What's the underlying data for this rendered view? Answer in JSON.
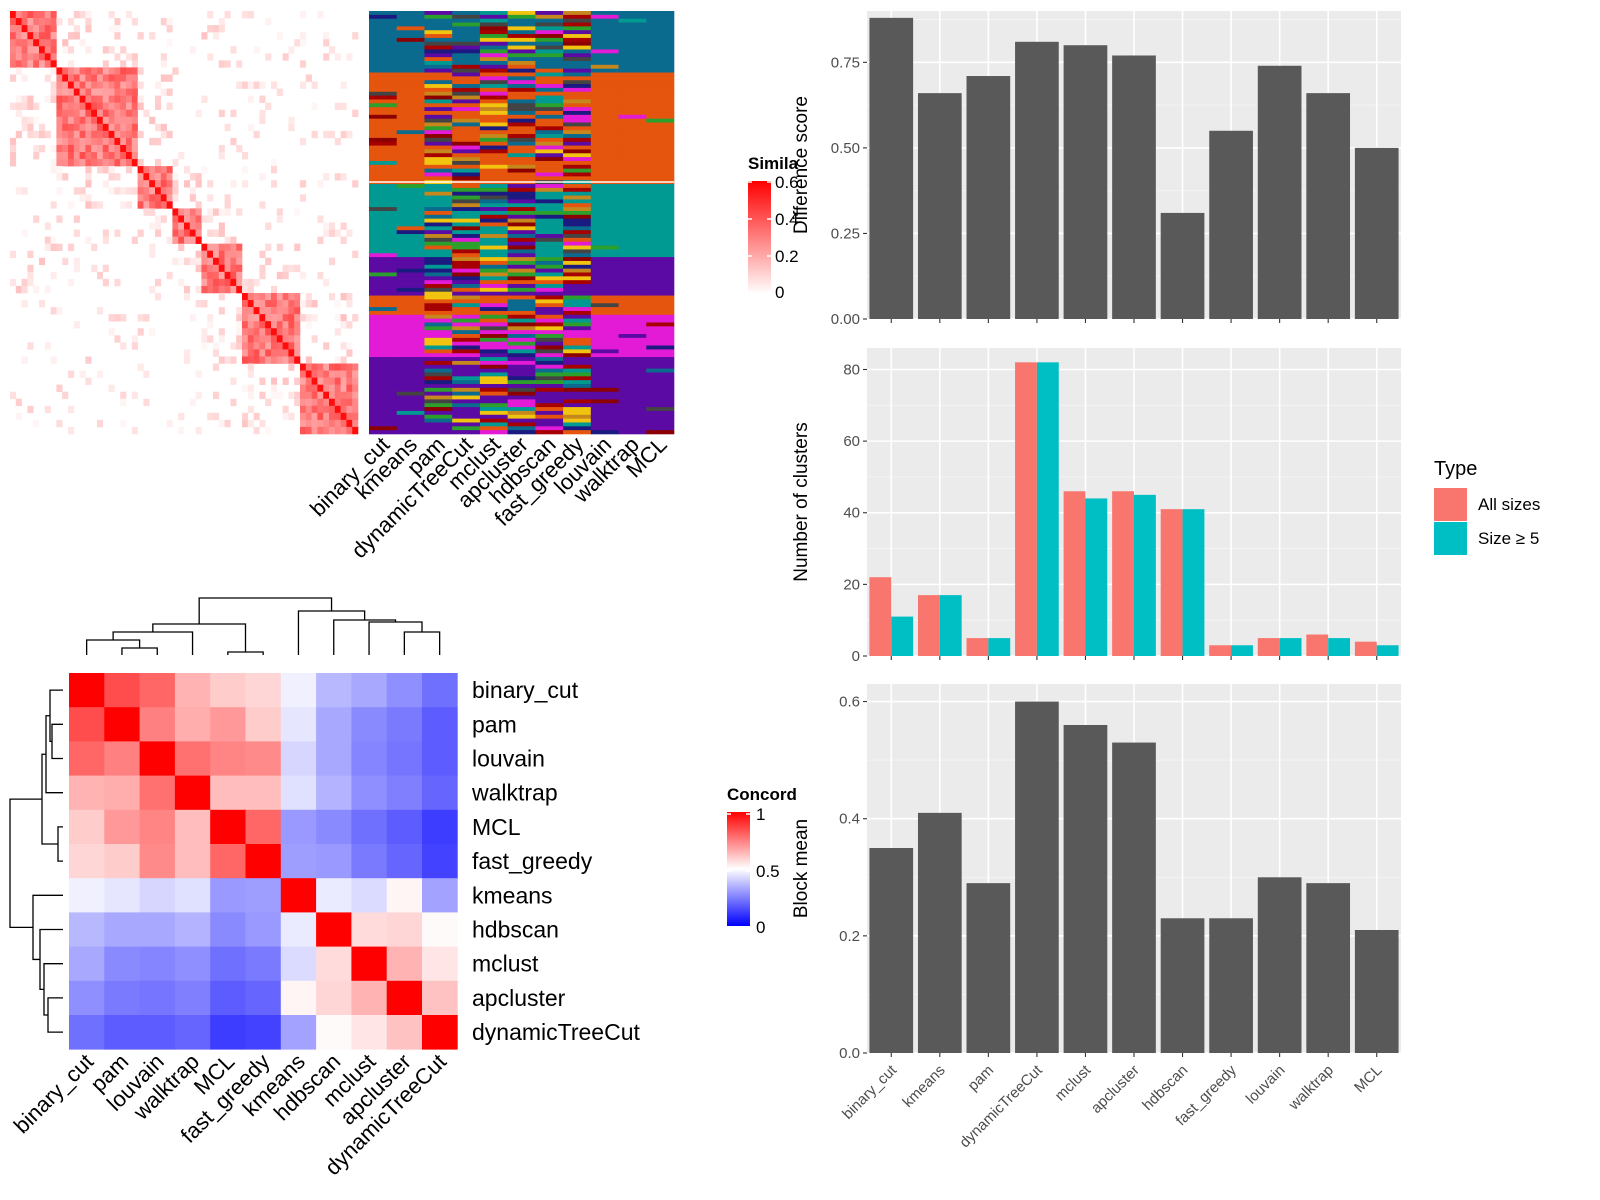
{
  "similarity_heatmap": {
    "legend_title": "Simila",
    "legend_ticks": [
      "0.6",
      "0.4",
      "0.2",
      "0"
    ],
    "method_labels": [
      "binary_cut",
      "kmeans",
      "pam",
      "dynamicTreeCut",
      "mclust",
      "apcluster",
      "hdbscan",
      "fast_greedy",
      "louvain",
      "walktrap",
      "MCL"
    ]
  },
  "concordance_heatmap": {
    "legend_title": "Concord",
    "legend_ticks": [
      "1",
      "0.5",
      "0"
    ],
    "row_labels": [
      "binary_cut",
      "pam",
      "louvain",
      "walktrap",
      "MCL",
      "fast_greedy",
      "kmeans",
      "hdbscan",
      "mclust",
      "apcluster",
      "dynamicTreeCut"
    ],
    "col_labels": [
      "binary_cut",
      "pam",
      "louvain",
      "walktrap",
      "MCL",
      "fast_greedy",
      "kmeans",
      "hdbscan",
      "mclust",
      "apcluster",
      "dynamicTreeCut"
    ],
    "values": [
      [
        1.0,
        0.85,
        0.8,
        0.65,
        0.6,
        0.58,
        0.47,
        0.36,
        0.33,
        0.28,
        0.22
      ],
      [
        0.85,
        1.0,
        0.75,
        0.66,
        0.7,
        0.6,
        0.45,
        0.33,
        0.27,
        0.24,
        0.18
      ],
      [
        0.8,
        0.75,
        1.0,
        0.78,
        0.74,
        0.73,
        0.42,
        0.33,
        0.26,
        0.23,
        0.18
      ],
      [
        0.65,
        0.66,
        0.78,
        1.0,
        0.63,
        0.63,
        0.44,
        0.35,
        0.28,
        0.25,
        0.2
      ],
      [
        0.6,
        0.7,
        0.74,
        0.63,
        1.0,
        0.8,
        0.3,
        0.27,
        0.22,
        0.18,
        0.12
      ],
      [
        0.58,
        0.6,
        0.73,
        0.63,
        0.8,
        1.0,
        0.31,
        0.3,
        0.24,
        0.2,
        0.13
      ],
      [
        0.47,
        0.45,
        0.42,
        0.44,
        0.3,
        0.31,
        1.0,
        0.46,
        0.43,
        0.52,
        0.32
      ],
      [
        0.36,
        0.33,
        0.33,
        0.35,
        0.27,
        0.3,
        0.46,
        1.0,
        0.57,
        0.58,
        0.51
      ],
      [
        0.33,
        0.27,
        0.26,
        0.28,
        0.22,
        0.24,
        0.43,
        0.57,
        1.0,
        0.65,
        0.55
      ],
      [
        0.28,
        0.24,
        0.23,
        0.25,
        0.18,
        0.2,
        0.52,
        0.58,
        0.65,
        1.0,
        0.62
      ],
      [
        0.22,
        0.18,
        0.18,
        0.2,
        0.12,
        0.13,
        0.32,
        0.51,
        0.55,
        0.62,
        1.0
      ]
    ]
  },
  "chart_data": [
    {
      "type": "bar",
      "categories": [
        "binary_cut",
        "kmeans",
        "pam",
        "dynamicTreeCut",
        "mclust",
        "apcluster",
        "hdbscan",
        "fast_greedy",
        "louvain",
        "walktrap",
        "MCL"
      ],
      "values": [
        0.88,
        0.66,
        0.71,
        0.81,
        0.8,
        0.77,
        0.31,
        0.55,
        0.74,
        0.66,
        0.5
      ],
      "xlabel": "",
      "ylabel": "Difference score",
      "ylim": [
        0,
        0.9
      ],
      "yticks": [
        "0.00",
        "0.25",
        "0.50",
        "0.75"
      ],
      "grid": true,
      "bar_color": "#595959"
    },
    {
      "type": "bar",
      "categories": [
        "binary_cut",
        "kmeans",
        "pam",
        "dynamicTreeCut",
        "mclust",
        "apcluster",
        "hdbscan",
        "fast_greedy",
        "louvain",
        "walktrap",
        "MCL"
      ],
      "series": [
        {
          "name": "All sizes",
          "color": "#F8766D",
          "values": [
            22,
            17,
            5,
            82,
            46,
            46,
            41,
            3,
            5,
            6,
            4
          ]
        },
        {
          "name": "Size ≥ 5",
          "color": "#00BFC4",
          "values": [
            11,
            17,
            5,
            82,
            44,
            45,
            41,
            3,
            5,
            5,
            3
          ]
        }
      ],
      "xlabel": "",
      "ylabel": "Number of clusters",
      "ylim": [
        0,
        86
      ],
      "yticks": [
        "0",
        "20",
        "40",
        "60",
        "80"
      ],
      "legend_title": "Type",
      "legend_position": "right",
      "grid": true
    },
    {
      "type": "bar",
      "categories": [
        "binary_cut",
        "kmeans",
        "pam",
        "dynamicTreeCut",
        "mclust",
        "apcluster",
        "hdbscan",
        "fast_greedy",
        "louvain",
        "walktrap",
        "MCL"
      ],
      "values": [
        0.35,
        0.41,
        0.29,
        0.6,
        0.56,
        0.53,
        0.23,
        0.23,
        0.3,
        0.29,
        0.21
      ],
      "xlabel": "",
      "ylabel": "Block mean",
      "ylim": [
        0,
        0.63
      ],
      "yticks": [
        "0.0",
        "0.2",
        "0.4",
        "0.6"
      ],
      "grid": true,
      "bar_color": "#595959"
    }
  ]
}
